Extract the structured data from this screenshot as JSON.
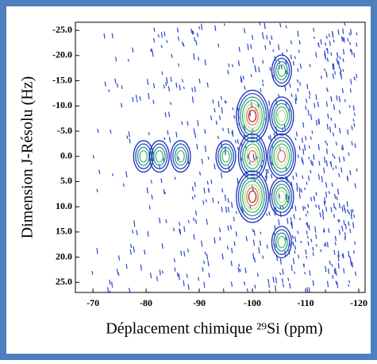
{
  "chart_data": {
    "type": "contour",
    "xlabel": "Déplacement chimique ²⁹Si (ppm)",
    "ylabel": "Dimension J-Résolu (Hz)",
    "x": [
      -79.5,
      -82.5,
      -86.5,
      -95,
      -100,
      -100,
      -100,
      -105.5,
      -105.5,
      -105.5,
      -105.5,
      -105.5
    ],
    "y": [
      0,
      0,
      0,
      0,
      -8,
      0,
      8,
      -17,
      -8,
      0,
      8,
      17
    ],
    "levels": [
      4,
      4,
      4,
      4,
      7,
      6,
      7,
      4,
      5,
      6,
      5,
      4
    ],
    "colors": [
      "#c02818",
      "#d87858",
      "#b8e0a0",
      "#50b870",
      "#2e9c8c",
      "#2848c8",
      "#1a30b0"
    ],
    "xlim": [
      -66.7,
      -121.2
    ],
    "ylim": [
      -26.6,
      27
    ],
    "xticks": [
      -70,
      -80,
      -90,
      -100,
      -110,
      -120
    ],
    "yticks": [
      {
        "value": -25,
        "label": "-25.0"
      },
      {
        "value": -20,
        "label": "-20.0"
      },
      {
        "value": -15,
        "label": "-15.0"
      },
      {
        "value": -10,
        "label": "-10.0"
      },
      {
        "value": -5,
        "label": "-5.0"
      },
      {
        "value": 0,
        "label": "0.0"
      },
      {
        "value": 5,
        "label": "5.0"
      },
      {
        "value": 10,
        "label": "10.0"
      },
      {
        "value": 15,
        "label": "15.0"
      },
      {
        "value": 20,
        "label": "20.0"
      },
      {
        "value": 25,
        "label": "25.0"
      }
    ]
  }
}
